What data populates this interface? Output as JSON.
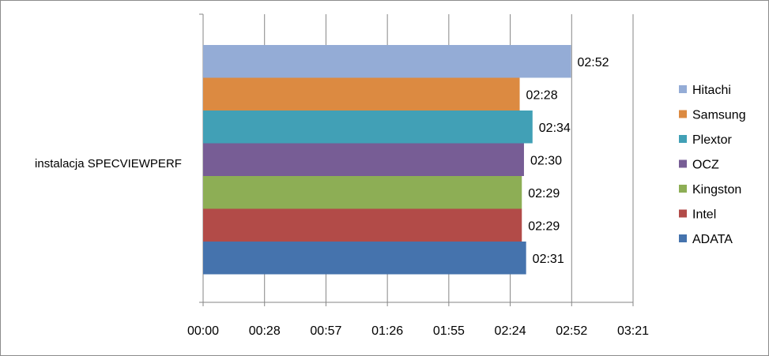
{
  "chart_data": {
    "type": "bar",
    "orientation": "horizontal",
    "categories": [
      "instalacja SPECVIEWPERF"
    ],
    "series": [
      {
        "name": "ADATA",
        "color": "#4573ad",
        "value_seconds": 151,
        "label": "02:31"
      },
      {
        "name": "Intel",
        "color": "#b24b48",
        "value_seconds": 149,
        "label": "02:29"
      },
      {
        "name": "Kingston",
        "color": "#8dae55",
        "value_seconds": 149,
        "label": "02:29"
      },
      {
        "name": "OCZ",
        "color": "#775d95",
        "value_seconds": 150,
        "label": "02:30"
      },
      {
        "name": "Plextor",
        "color": "#41a0b6",
        "value_seconds": 154,
        "label": "02:34"
      },
      {
        "name": "Samsung",
        "color": "#dc8a41",
        "value_seconds": 148,
        "label": "02:28"
      },
      {
        "name": "Hitachi",
        "color": "#94acd6",
        "value_seconds": 172,
        "label": "02:52"
      }
    ],
    "x_ticks": [
      "00:00",
      "00:28",
      "00:57",
      "01:26",
      "01:55",
      "02:24",
      "02:52",
      "03:21"
    ],
    "xlim_seconds": [
      0,
      201
    ],
    "grid": "vertical",
    "legend_position": "right"
  }
}
